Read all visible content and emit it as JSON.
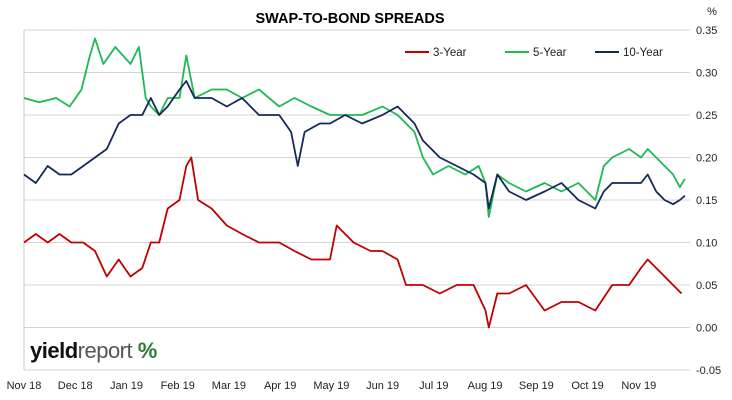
{
  "chart_data": {
    "type": "line",
    "title": "SWAP-TO-BOND SPREADS",
    "y_unit": "%",
    "ylim": [
      -0.05,
      0.35
    ],
    "yticks": [
      "0.35",
      "0.30",
      "0.25",
      "0.20",
      "0.15",
      "0.10",
      "0.05",
      "0.00",
      "-0.05"
    ],
    "y_axis_side": "right",
    "grid": "horizontal",
    "legend_position": "top-right",
    "x_ticks": [
      "Nov 18",
      "Dec 18",
      "Jan 19",
      "Feb 19",
      "Mar 19",
      "Apr 19",
      "May 19",
      "Jun 19",
      "Jul 19",
      "Aug 19",
      "Sep 19",
      "Oct 19",
      "Nov 19"
    ],
    "x_range": [
      "2018-11-01",
      "2019-11-30"
    ],
    "series": [
      {
        "name": "3-Year",
        "color": "#c00000",
        "points": [
          [
            "2018-11-01",
            0.1
          ],
          [
            "2018-11-08",
            0.11
          ],
          [
            "2018-11-15",
            0.1
          ],
          [
            "2018-11-22",
            0.11
          ],
          [
            "2018-11-29",
            0.1
          ],
          [
            "2018-12-06",
            0.1
          ],
          [
            "2018-12-13",
            0.09
          ],
          [
            "2018-12-20",
            0.06
          ],
          [
            "2018-12-27",
            0.08
          ],
          [
            "2019-01-03",
            0.06
          ],
          [
            "2019-01-10",
            0.07
          ],
          [
            "2019-01-15",
            0.1
          ],
          [
            "2019-01-20",
            0.1
          ],
          [
            "2019-01-25",
            0.14
          ],
          [
            "2019-02-01",
            0.15
          ],
          [
            "2019-02-05",
            0.19
          ],
          [
            "2019-02-08",
            0.2
          ],
          [
            "2019-02-12",
            0.15
          ],
          [
            "2019-02-20",
            0.14
          ],
          [
            "2019-03-01",
            0.12
          ],
          [
            "2019-03-10",
            0.11
          ],
          [
            "2019-03-20",
            0.1
          ],
          [
            "2019-04-01",
            0.1
          ],
          [
            "2019-04-10",
            0.09
          ],
          [
            "2019-04-20",
            0.08
          ],
          [
            "2019-05-01",
            0.08
          ],
          [
            "2019-05-05",
            0.12
          ],
          [
            "2019-05-15",
            0.1
          ],
          [
            "2019-05-25",
            0.09
          ],
          [
            "2019-06-01",
            0.09
          ],
          [
            "2019-06-10",
            0.08
          ],
          [
            "2019-06-15",
            0.05
          ],
          [
            "2019-06-25",
            0.05
          ],
          [
            "2019-07-05",
            0.04
          ],
          [
            "2019-07-15",
            0.05
          ],
          [
            "2019-07-25",
            0.05
          ],
          [
            "2019-08-01",
            0.02
          ],
          [
            "2019-08-03",
            0.0
          ],
          [
            "2019-08-08",
            0.04
          ],
          [
            "2019-08-15",
            0.04
          ],
          [
            "2019-08-25",
            0.05
          ],
          [
            "2019-09-05",
            0.02
          ],
          [
            "2019-09-15",
            0.03
          ],
          [
            "2019-09-25",
            0.03
          ],
          [
            "2019-10-05",
            0.02
          ],
          [
            "2019-10-15",
            0.05
          ],
          [
            "2019-10-25",
            0.05
          ],
          [
            "2019-11-01",
            0.07
          ],
          [
            "2019-11-05",
            0.08
          ],
          [
            "2019-11-10",
            0.07
          ],
          [
            "2019-11-20",
            0.05
          ],
          [
            "2019-11-25",
            0.04
          ]
        ]
      },
      {
        "name": "5-Year",
        "color": "#1db954",
        "points": [
          [
            "2018-11-01",
            0.27
          ],
          [
            "2018-11-10",
            0.265
          ],
          [
            "2018-11-20",
            0.27
          ],
          [
            "2018-11-28",
            0.26
          ],
          [
            "2018-12-05",
            0.28
          ],
          [
            "2018-12-10",
            0.32
          ],
          [
            "2018-12-13",
            0.34
          ],
          [
            "2018-12-18",
            0.31
          ],
          [
            "2018-12-25",
            0.33
          ],
          [
            "2019-01-03",
            0.31
          ],
          [
            "2019-01-08",
            0.33
          ],
          [
            "2019-01-12",
            0.27
          ],
          [
            "2019-01-15",
            0.26
          ],
          [
            "2019-01-20",
            0.25
          ],
          [
            "2019-01-25",
            0.27
          ],
          [
            "2019-02-01",
            0.27
          ],
          [
            "2019-02-05",
            0.32
          ],
          [
            "2019-02-10",
            0.27
          ],
          [
            "2019-02-20",
            0.28
          ],
          [
            "2019-03-01",
            0.28
          ],
          [
            "2019-03-10",
            0.27
          ],
          [
            "2019-03-20",
            0.28
          ],
          [
            "2019-04-01",
            0.26
          ],
          [
            "2019-04-10",
            0.27
          ],
          [
            "2019-04-20",
            0.26
          ],
          [
            "2019-05-01",
            0.25
          ],
          [
            "2019-05-10",
            0.25
          ],
          [
            "2019-05-20",
            0.25
          ],
          [
            "2019-06-01",
            0.26
          ],
          [
            "2019-06-10",
            0.25
          ],
          [
            "2019-06-20",
            0.23
          ],
          [
            "2019-06-25",
            0.2
          ],
          [
            "2019-07-01",
            0.18
          ],
          [
            "2019-07-10",
            0.19
          ],
          [
            "2019-07-20",
            0.18
          ],
          [
            "2019-07-28",
            0.19
          ],
          [
            "2019-08-01",
            0.17
          ],
          [
            "2019-08-03",
            0.13
          ],
          [
            "2019-08-08",
            0.18
          ],
          [
            "2019-08-15",
            0.17
          ],
          [
            "2019-08-25",
            0.16
          ],
          [
            "2019-09-05",
            0.17
          ],
          [
            "2019-09-15",
            0.16
          ],
          [
            "2019-09-25",
            0.17
          ],
          [
            "2019-10-05",
            0.15
          ],
          [
            "2019-10-10",
            0.19
          ],
          [
            "2019-10-15",
            0.2
          ],
          [
            "2019-10-25",
            0.21
          ],
          [
            "2019-11-01",
            0.2
          ],
          [
            "2019-11-05",
            0.21
          ],
          [
            "2019-11-10",
            0.2
          ],
          [
            "2019-11-15",
            0.19
          ],
          [
            "2019-11-20",
            0.18
          ],
          [
            "2019-11-24",
            0.165
          ],
          [
            "2019-11-27",
            0.175
          ]
        ]
      },
      {
        "name": "10-Year",
        "color": "#14285a",
        "points": [
          [
            "2018-11-01",
            0.18
          ],
          [
            "2018-11-08",
            0.17
          ],
          [
            "2018-11-15",
            0.19
          ],
          [
            "2018-11-22",
            0.18
          ],
          [
            "2018-11-29",
            0.18
          ],
          [
            "2018-12-06",
            0.19
          ],
          [
            "2018-12-13",
            0.2
          ],
          [
            "2018-12-20",
            0.21
          ],
          [
            "2018-12-27",
            0.24
          ],
          [
            "2019-01-03",
            0.25
          ],
          [
            "2019-01-10",
            0.25
          ],
          [
            "2019-01-15",
            0.27
          ],
          [
            "2019-01-20",
            0.25
          ],
          [
            "2019-01-25",
            0.26
          ],
          [
            "2019-02-01",
            0.28
          ],
          [
            "2019-02-05",
            0.29
          ],
          [
            "2019-02-10",
            0.27
          ],
          [
            "2019-02-20",
            0.27
          ],
          [
            "2019-03-01",
            0.26
          ],
          [
            "2019-03-10",
            0.27
          ],
          [
            "2019-03-20",
            0.25
          ],
          [
            "2019-04-01",
            0.25
          ],
          [
            "2019-04-08",
            0.23
          ],
          [
            "2019-04-12",
            0.19
          ],
          [
            "2019-04-16",
            0.23
          ],
          [
            "2019-04-25",
            0.24
          ],
          [
            "2019-05-01",
            0.24
          ],
          [
            "2019-05-10",
            0.25
          ],
          [
            "2019-05-20",
            0.24
          ],
          [
            "2019-06-01",
            0.25
          ],
          [
            "2019-06-10",
            0.26
          ],
          [
            "2019-06-20",
            0.24
          ],
          [
            "2019-06-25",
            0.22
          ],
          [
            "2019-07-05",
            0.2
          ],
          [
            "2019-07-15",
            0.19
          ],
          [
            "2019-07-25",
            0.18
          ],
          [
            "2019-08-01",
            0.17
          ],
          [
            "2019-08-03",
            0.14
          ],
          [
            "2019-08-08",
            0.18
          ],
          [
            "2019-08-15",
            0.16
          ],
          [
            "2019-08-25",
            0.15
          ],
          [
            "2019-09-05",
            0.16
          ],
          [
            "2019-09-15",
            0.17
          ],
          [
            "2019-09-25",
            0.15
          ],
          [
            "2019-10-05",
            0.14
          ],
          [
            "2019-10-10",
            0.16
          ],
          [
            "2019-10-15",
            0.17
          ],
          [
            "2019-10-25",
            0.17
          ],
          [
            "2019-11-01",
            0.17
          ],
          [
            "2019-11-05",
            0.18
          ],
          [
            "2019-11-10",
            0.16
          ],
          [
            "2019-11-15",
            0.15
          ],
          [
            "2019-11-20",
            0.145
          ],
          [
            "2019-11-24",
            0.15
          ],
          [
            "2019-11-27",
            0.155
          ]
        ]
      }
    ]
  },
  "logo": {
    "part1": "yield",
    "part2": "report",
    "part3": "%"
  }
}
